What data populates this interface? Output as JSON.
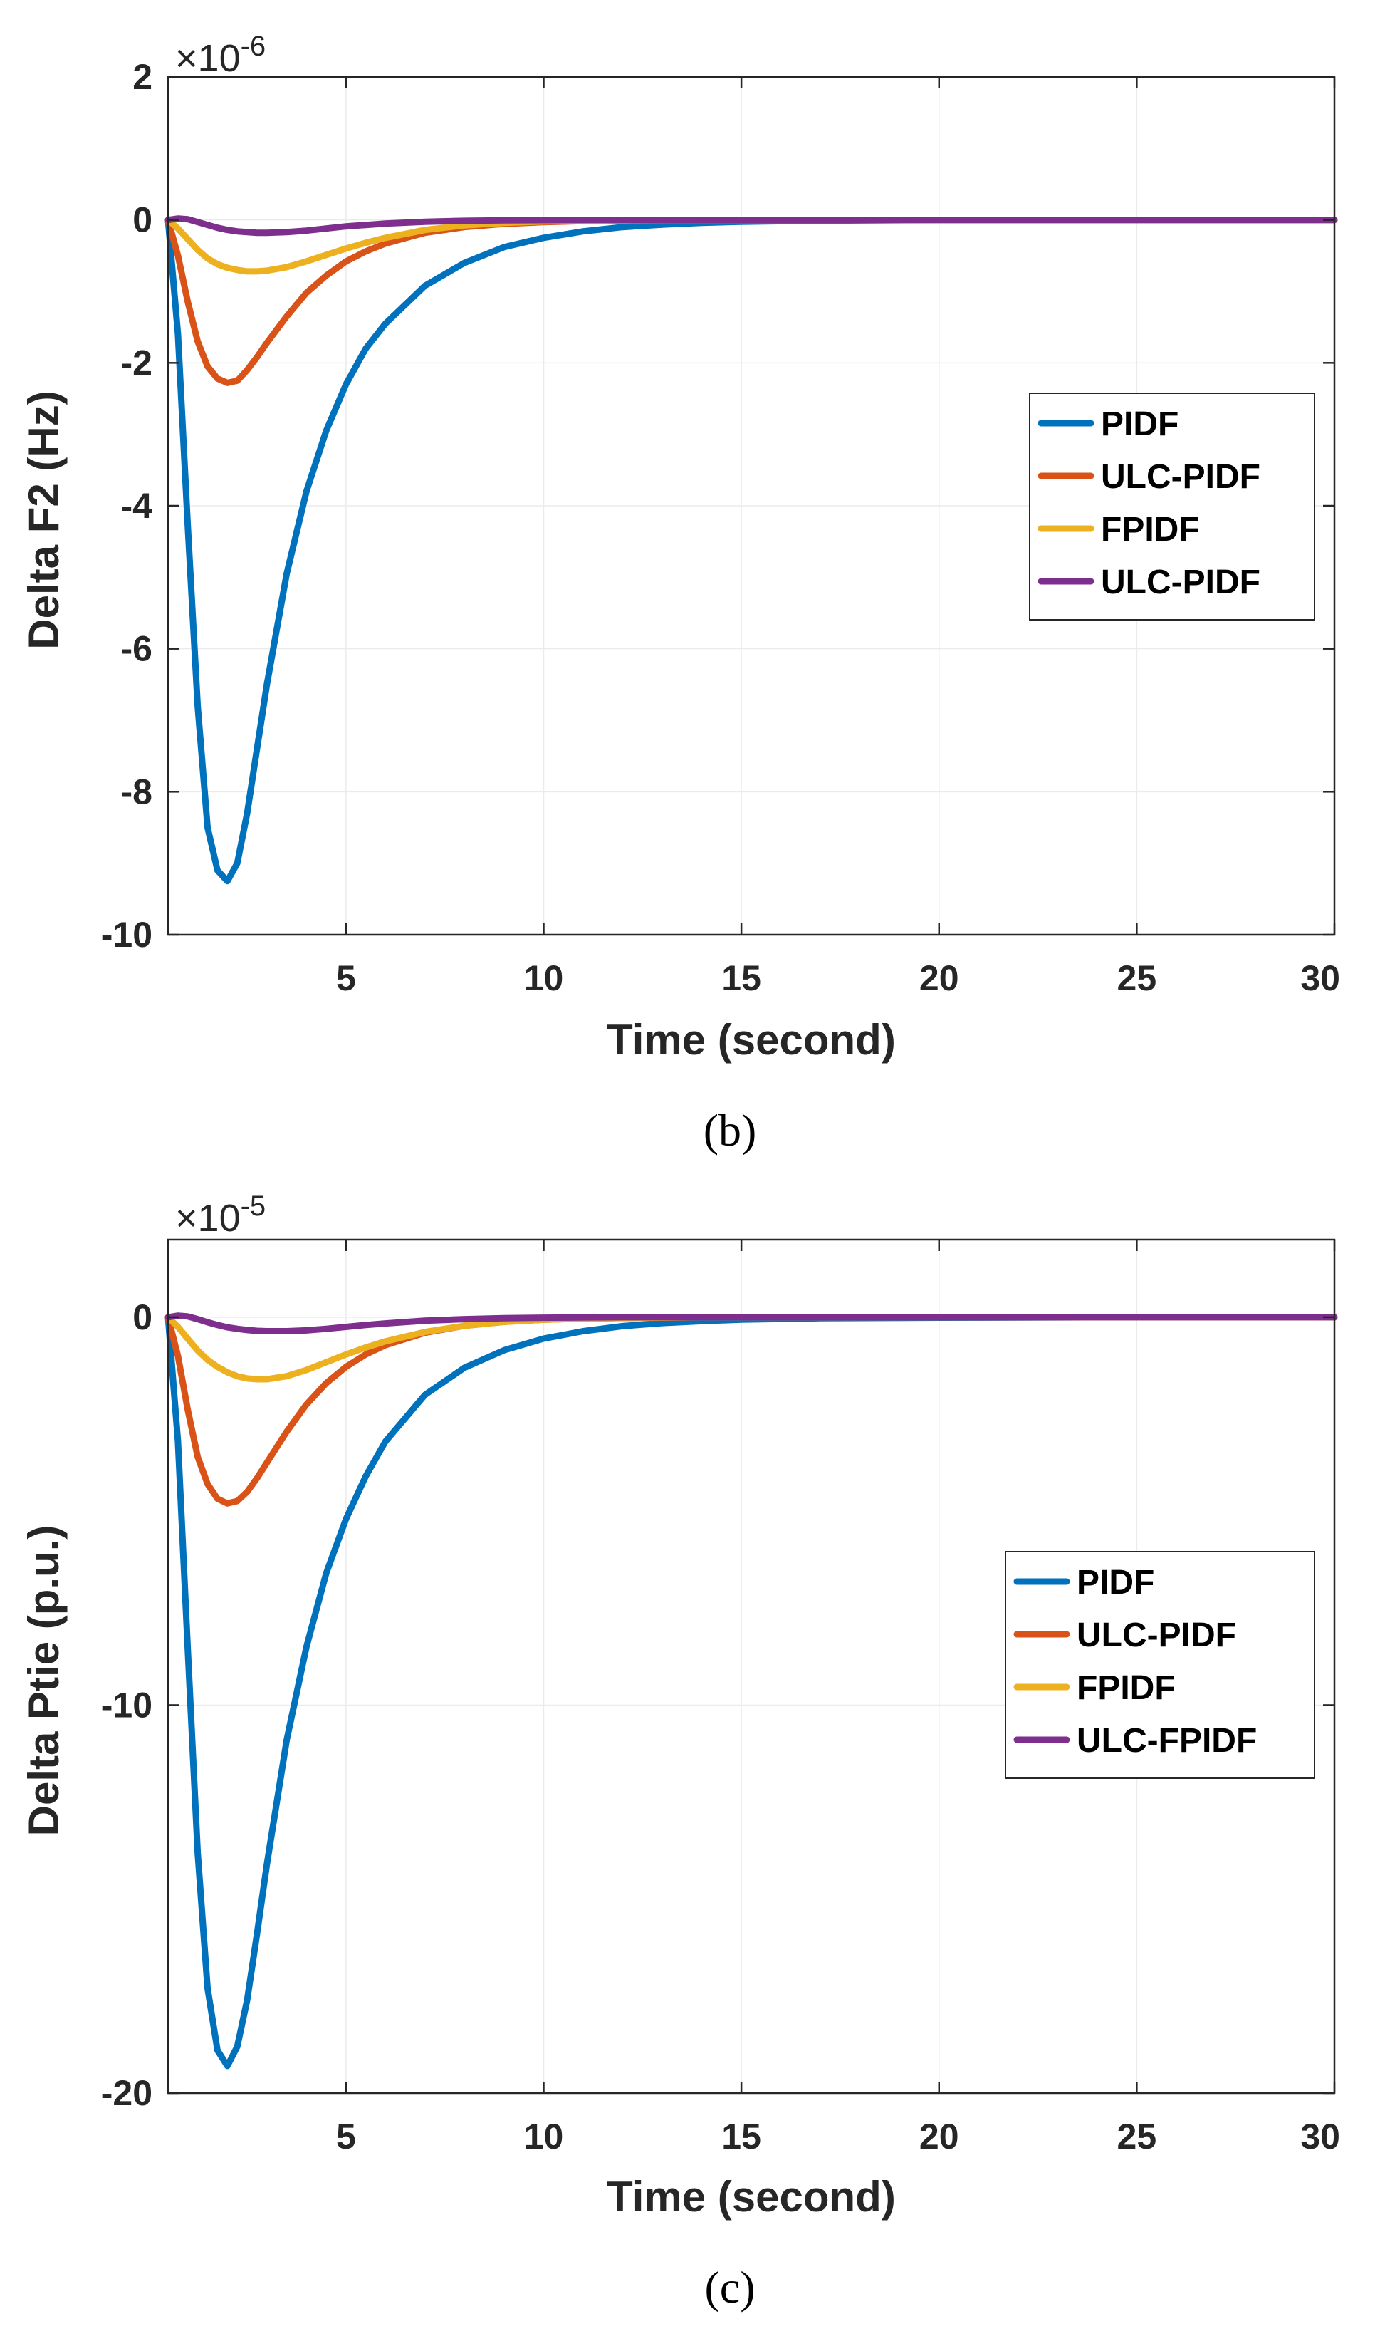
{
  "chart_data": [
    {
      "type": "line",
      "panel": "(b)",
      "title": "",
      "xlabel": "Time (second)",
      "ylabel": "Delta F2 (Hz)",
      "exponent_base": "×10",
      "exponent_power": "-6",
      "xlim": [
        0.5,
        30
      ],
      "ylim": [
        -10,
        2
      ],
      "xticks": [
        5,
        10,
        15,
        20,
        25,
        30
      ],
      "xtick_labels": [
        "5",
        "10",
        "15",
        "20",
        "25",
        "30"
      ],
      "yticks": [
        2,
        0,
        -2,
        -4,
        -6,
        -8,
        -10
      ],
      "ytick_labels": [
        "2",
        "0",
        "-2",
        "-4",
        "-6",
        "-8",
        "-10"
      ],
      "grid": true,
      "legend_position": "right-middle",
      "x": [
        0.5,
        0.75,
        1,
        1.25,
        1.5,
        1.75,
        2,
        2.25,
        2.5,
        2.75,
        3,
        3.5,
        4,
        4.5,
        5,
        5.5,
        6,
        7,
        8,
        9,
        10,
        11,
        12,
        13,
        14,
        15,
        17,
        20,
        25,
        30
      ],
      "series": [
        {
          "name": "PIDF",
          "color": "#0072BD",
          "values": [
            0,
            -1.6,
            -4.3,
            -6.8,
            -8.5,
            -9.1,
            -9.25,
            -9.0,
            -8.3,
            -7.4,
            -6.5,
            -4.95,
            -3.8,
            -2.95,
            -2.3,
            -1.8,
            -1.45,
            -0.92,
            -0.6,
            -0.38,
            -0.25,
            -0.16,
            -0.1,
            -0.065,
            -0.04,
            -0.025,
            -0.01,
            0,
            0,
            0
          ]
        },
        {
          "name": "ULC-PIDF",
          "color": "#D95319",
          "values": [
            0,
            -0.5,
            -1.15,
            -1.7,
            -2.05,
            -2.22,
            -2.28,
            -2.25,
            -2.1,
            -1.92,
            -1.72,
            -1.35,
            -1.02,
            -0.78,
            -0.58,
            -0.44,
            -0.33,
            -0.18,
            -0.1,
            -0.055,
            -0.03,
            -0.016,
            -0.008,
            -0.004,
            0,
            0,
            0,
            0,
            0,
            0
          ]
        },
        {
          "name": "FPIDF",
          "color": "#EDB120",
          "values": [
            0,
            -0.12,
            -0.27,
            -0.42,
            -0.54,
            -0.62,
            -0.67,
            -0.7,
            -0.72,
            -0.72,
            -0.71,
            -0.66,
            -0.58,
            -0.49,
            -0.4,
            -0.32,
            -0.25,
            -0.14,
            -0.075,
            -0.04,
            -0.02,
            -0.01,
            -0.005,
            0,
            0,
            0,
            0,
            0,
            0,
            0
          ]
        },
        {
          "name": "ULC-PIDF",
          "color": "#7E2F8E",
          "values": [
            0,
            0.02,
            0.01,
            -0.03,
            -0.07,
            -0.11,
            -0.14,
            -0.16,
            -0.17,
            -0.18,
            -0.18,
            -0.17,
            -0.15,
            -0.12,
            -0.09,
            -0.07,
            -0.05,
            -0.025,
            -0.012,
            -0.006,
            -0.003,
            0,
            0,
            0,
            0,
            0,
            0,
            0,
            0,
            0
          ]
        }
      ]
    },
    {
      "type": "line",
      "panel": "(c)",
      "title": "",
      "xlabel": "Time (second)",
      "ylabel": "Delta Ptie (p.u.)",
      "exponent_base": "×10",
      "exponent_power": "-5",
      "xlim": [
        0.5,
        30
      ],
      "ylim": [
        -20,
        2
      ],
      "xticks": [
        5,
        10,
        15,
        20,
        25,
        30
      ],
      "xtick_labels": [
        "5",
        "10",
        "15",
        "20",
        "25",
        "30"
      ],
      "yticks": [
        0,
        -10,
        -20
      ],
      "ytick_labels": [
        "0",
        "-10",
        "-20"
      ],
      "grid": true,
      "legend_position": "right-middle",
      "x": [
        0.5,
        0.75,
        1,
        1.25,
        1.5,
        1.75,
        2,
        2.25,
        2.5,
        2.75,
        3,
        3.5,
        4,
        4.5,
        5,
        5.5,
        6,
        7,
        8,
        9,
        10,
        11,
        12,
        13,
        14,
        15,
        17,
        20,
        25,
        30
      ],
      "series": [
        {
          "name": "PIDF",
          "color": "#0072BD",
          "values": [
            0,
            -3.2,
            -8.6,
            -13.8,
            -17.3,
            -18.9,
            -19.3,
            -18.8,
            -17.6,
            -15.9,
            -14.1,
            -10.9,
            -8.5,
            -6.6,
            -5.2,
            -4.1,
            -3.2,
            -2.0,
            -1.3,
            -0.85,
            -0.55,
            -0.36,
            -0.23,
            -0.15,
            -0.1,
            -0.06,
            -0.025,
            -0.01,
            0,
            0
          ]
        },
        {
          "name": "ULC-PIDF",
          "color": "#D95319",
          "values": [
            0,
            -1.0,
            -2.4,
            -3.6,
            -4.3,
            -4.68,
            -4.8,
            -4.74,
            -4.5,
            -4.15,
            -3.75,
            -2.95,
            -2.25,
            -1.7,
            -1.28,
            -0.96,
            -0.72,
            -0.4,
            -0.22,
            -0.12,
            -0.065,
            -0.035,
            -0.02,
            -0.01,
            0,
            0,
            0,
            0,
            0,
            0
          ]
        },
        {
          "name": "FPIDF",
          "color": "#EDB120",
          "values": [
            0,
            -0.25,
            -0.56,
            -0.86,
            -1.1,
            -1.28,
            -1.42,
            -1.52,
            -1.58,
            -1.6,
            -1.6,
            -1.52,
            -1.36,
            -1.16,
            -0.96,
            -0.78,
            -0.62,
            -0.38,
            -0.22,
            -0.12,
            -0.065,
            -0.035,
            -0.018,
            -0.009,
            0,
            0,
            0,
            0,
            0,
            0
          ]
        },
        {
          "name": "ULC-FPIDF",
          "color": "#7E2F8E",
          "values": [
            0,
            0.04,
            0.02,
            -0.05,
            -0.13,
            -0.2,
            -0.26,
            -0.3,
            -0.33,
            -0.35,
            -0.36,
            -0.36,
            -0.34,
            -0.3,
            -0.25,
            -0.2,
            -0.16,
            -0.09,
            -0.05,
            -0.025,
            -0.012,
            -0.006,
            0,
            0,
            0,
            0,
            0,
            0,
            0,
            0
          ]
        }
      ]
    }
  ]
}
